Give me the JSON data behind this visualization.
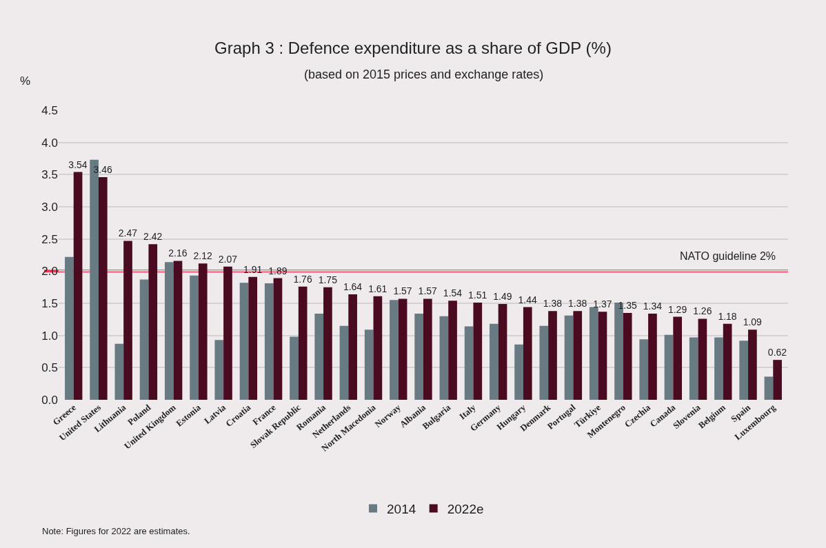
{
  "chart_data": {
    "type": "bar",
    "title": "Graph 3 : Defence expenditure as a share of GDP (%)",
    "subtitle": "(based on 2015 prices and exchange rates)",
    "ylabel": "%",
    "categories": [
      "Greece",
      "United States",
      "Lithuania",
      "Poland",
      "United Kingdom",
      "Estonia",
      "Latvia",
      "Croatia",
      "France",
      "Slovak Republic",
      "Romania",
      "Netherlands",
      "North Macedonia",
      "Norway",
      "Albania",
      "Bulgaria",
      "Italy",
      "Germany",
      "Hungary",
      "Denmark",
      "Portugal",
      "Türkiye",
      "Montenegro",
      "Czechia",
      "Canada",
      "Slovenia",
      "Belgium",
      "Spain",
      "Luxembourg"
    ],
    "series": [
      {
        "name": "2014",
        "color": "#687a82",
        "values": [
          2.22,
          3.73,
          0.87,
          1.87,
          2.14,
          1.93,
          0.93,
          1.82,
          1.81,
          0.98,
          1.34,
          1.15,
          1.09,
          1.55,
          1.34,
          1.3,
          1.14,
          1.18,
          0.86,
          1.15,
          1.31,
          1.44,
          1.51,
          0.94,
          1.01,
          0.97,
          0.97,
          0.92,
          0.36
        ]
      },
      {
        "name": "2022e",
        "color": "#4a0a1f",
        "values": [
          3.54,
          3.46,
          2.47,
          2.42,
          2.16,
          2.12,
          2.07,
          1.91,
          1.89,
          1.76,
          1.75,
          1.64,
          1.61,
          1.57,
          1.57,
          1.54,
          1.51,
          1.49,
          1.44,
          1.38,
          1.38,
          1.37,
          1.35,
          1.34,
          1.29,
          1.26,
          1.18,
          1.09,
          0.62
        ],
        "value_labels": [
          "3.54",
          "3.46",
          "2.47",
          "2.42",
          "2.16",
          "2.12",
          "2.07",
          "1.91",
          "1.89",
          "1.76",
          "1.75",
          "1.64",
          "1.61",
          "1.57",
          "1.57",
          "1.54",
          "1.51",
          "1.49",
          "1.44",
          "1.38",
          "1.38",
          "1.37",
          "1.35",
          "1.34",
          "1.29",
          "1.26",
          "1.18",
          "1.09",
          "0.62"
        ]
      }
    ],
    "ylim": [
      0,
      4.5
    ],
    "yticks": [
      {
        "value": 0,
        "label": "0.0"
      },
      {
        "value": 0.5,
        "label": "0.5"
      },
      {
        "value": 1,
        "label": "1.0"
      },
      {
        "value": 1.5,
        "label": "1.5"
      },
      {
        "value": 2,
        "label": "2.0"
      },
      {
        "value": 2.5,
        "label": "2.5"
      },
      {
        "value": 3,
        "label": "3.0"
      },
      {
        "value": 3.5,
        "label": "3.5"
      },
      {
        "value": 4,
        "label": "4.0"
      },
      {
        "value": 4.5,
        "label": "4.5"
      }
    ],
    "grid": "y",
    "legend": "bottom",
    "ref_lines": [
      {
        "axis": "y",
        "value": 2,
        "label": "NATO guideline 2%",
        "color": "#f0385a"
      }
    ],
    "annotations": [
      "Note: Figures for 2022 are estimates."
    ]
  }
}
